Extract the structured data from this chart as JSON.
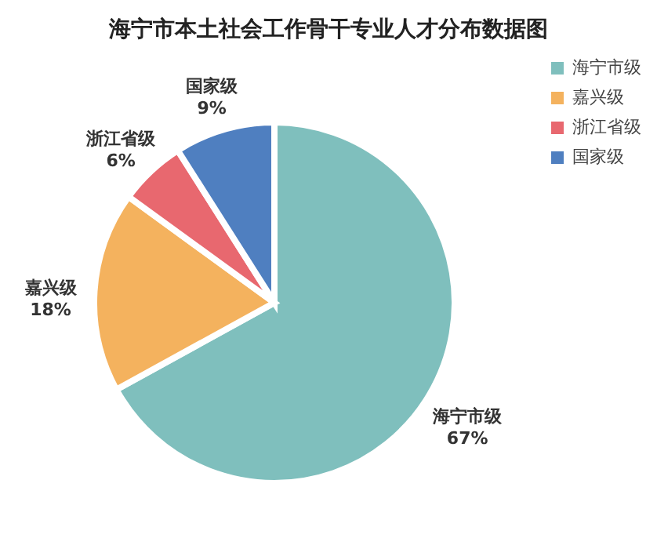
{
  "chart_data": {
    "type": "pie",
    "title": "海宁市本土社会工作骨干专业人才分布数据图",
    "categories": [
      "海宁市级",
      "嘉兴级",
      "浙江省级",
      "国家级"
    ],
    "values": [
      67,
      18,
      6,
      9
    ],
    "value_labels": [
      "67%",
      "18%",
      "6%",
      "9%"
    ],
    "colors": [
      "#7fbfbd",
      "#f4b25e",
      "#e8686f",
      "#4f7fc0"
    ],
    "legend": "right"
  }
}
